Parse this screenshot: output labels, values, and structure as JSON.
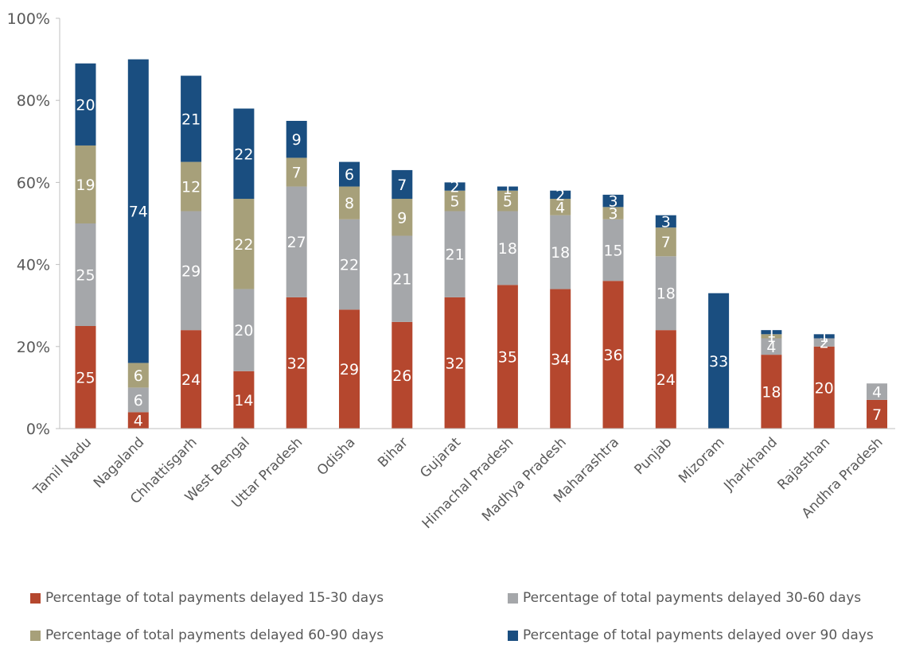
{
  "chart_data": {
    "type": "bar",
    "stacked": true,
    "title": "",
    "xlabel": "",
    "ylabel": "",
    "ylim": [
      0,
      100
    ],
    "yticks": [
      "0%",
      "20%",
      "40%",
      "60%",
      "80%",
      "100%"
    ],
    "categories": [
      "Tamil Nadu",
      "Nagaland",
      "Chhattisgarh",
      "West Bengal",
      "Uttar Pradesh",
      "Odisha",
      "Bihar",
      "Gujarat",
      "Himachal Pradesh",
      "Madhya Pradesh",
      "Maharashtra",
      "Punjab",
      "Mizoram",
      "Jharkhand",
      "Rajasthan",
      "Andhra Pradesh"
    ],
    "series": [
      {
        "name": "Percentage of total payments delayed 15-30 days",
        "color": "#B5472E",
        "values": [
          25,
          4,
          24,
          14,
          32,
          29,
          26,
          32,
          35,
          34,
          36,
          24,
          0,
          18,
          20,
          7
        ]
      },
      {
        "name": "Percentage of total payments delayed 30-60 days",
        "color": "#A5A7AA",
        "values": [
          25,
          6,
          29,
          20,
          27,
          22,
          21,
          21,
          18,
          18,
          15,
          18,
          0,
          4,
          2,
          4
        ]
      },
      {
        "name": "Percentage of total payments delayed 60-90 days",
        "color": "#A7A07A",
        "values": [
          19,
          6,
          12,
          22,
          7,
          8,
          9,
          5,
          5,
          4,
          3,
          7,
          0,
          1,
          0,
          0
        ]
      },
      {
        "name": "Percentage of total payments delayed over 90 days",
        "color": "#1A4E80",
        "values": [
          20,
          74,
          21,
          22,
          9,
          6,
          7,
          2,
          1,
          2,
          3,
          3,
          33,
          1,
          1,
          0
        ]
      }
    ],
    "grid": false,
    "legend_position": "bottom"
  }
}
